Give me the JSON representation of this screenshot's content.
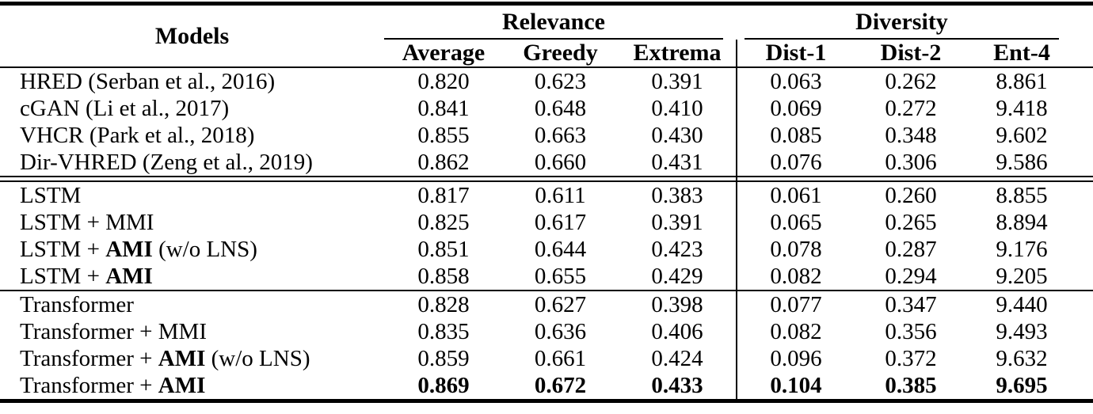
{
  "table": {
    "header": {
      "models_label": "Models",
      "groups": [
        {
          "label": "Relevance",
          "columns": [
            "Average",
            "Greedy",
            "Extrema"
          ]
        },
        {
          "label": "Diversity",
          "columns": [
            "Dist-1",
            "Dist-2",
            "Ent-4"
          ]
        }
      ]
    },
    "row_groups": [
      {
        "name": "baselines",
        "rows": [
          {
            "name": {
              "prefix": "HRED (Serban et al., 2016)",
              "bold": "",
              "suffix": ""
            },
            "values": [
              "0.820",
              "0.623",
              "0.391",
              "0.063",
              "0.262",
              "8.861"
            ]
          },
          {
            "name": {
              "prefix": "cGAN (Li et al., 2017)",
              "bold": "",
              "suffix": ""
            },
            "values": [
              "0.841",
              "0.648",
              "0.410",
              "0.069",
              "0.272",
              "9.418"
            ]
          },
          {
            "name": {
              "prefix": "VHCR (Park et al., 2018)",
              "bold": "",
              "suffix": ""
            },
            "values": [
              "0.855",
              "0.663",
              "0.430",
              "0.085",
              "0.348",
              "9.602"
            ]
          },
          {
            "name": {
              "prefix": "Dir-VHRED (Zeng et al., 2019)",
              "bold": "",
              "suffix": ""
            },
            "values": [
              "0.862",
              "0.660",
              "0.431",
              "0.076",
              "0.306",
              "9.586"
            ]
          }
        ]
      },
      {
        "name": "lstm",
        "rows": [
          {
            "name": {
              "prefix": "LSTM",
              "bold": "",
              "suffix": ""
            },
            "values": [
              "0.817",
              "0.611",
              "0.383",
              "0.061",
              "0.260",
              "8.855"
            ]
          },
          {
            "name": {
              "prefix": "LSTM + MMI",
              "bold": "",
              "suffix": ""
            },
            "values": [
              "0.825",
              "0.617",
              "0.391",
              "0.065",
              "0.265",
              "8.894"
            ]
          },
          {
            "name": {
              "prefix": "LSTM + ",
              "bold": "AMI",
              "suffix": " (w/o LNS)"
            },
            "values": [
              "0.851",
              "0.644",
              "0.423",
              "0.078",
              "0.287",
              "9.176"
            ]
          },
          {
            "name": {
              "prefix": "LSTM + ",
              "bold": "AMI",
              "suffix": ""
            },
            "values": [
              "0.858",
              "0.655",
              "0.429",
              "0.082",
              "0.294",
              "9.205"
            ]
          }
        ]
      },
      {
        "name": "transformer",
        "rows": [
          {
            "name": {
              "prefix": "Transformer",
              "bold": "",
              "suffix": ""
            },
            "values": [
              "0.828",
              "0.627",
              "0.398",
              "0.077",
              "0.347",
              "9.440"
            ]
          },
          {
            "name": {
              "prefix": "Transformer + MMI",
              "bold": "",
              "suffix": ""
            },
            "values": [
              "0.835",
              "0.636",
              "0.406",
              "0.082",
              "0.356",
              "9.493"
            ]
          },
          {
            "name": {
              "prefix": "Transformer + ",
              "bold": "AMI",
              "suffix": " (w/o LNS)"
            },
            "values": [
              "0.859",
              "0.661",
              "0.424",
              "0.096",
              "0.372",
              "9.632"
            ]
          },
          {
            "name": {
              "prefix": "Transformer + ",
              "bold": "AMI",
              "suffix": "",
              "highlight": "best-results-bold"
            },
            "values": [
              "0.869",
              "0.672",
              "0.433",
              "0.104",
              "0.385",
              "9.695"
            ]
          }
        ]
      }
    ],
    "styles": {
      "text_color": "#000000",
      "background": "#ffffff",
      "rule_color": "#000000"
    }
  }
}
